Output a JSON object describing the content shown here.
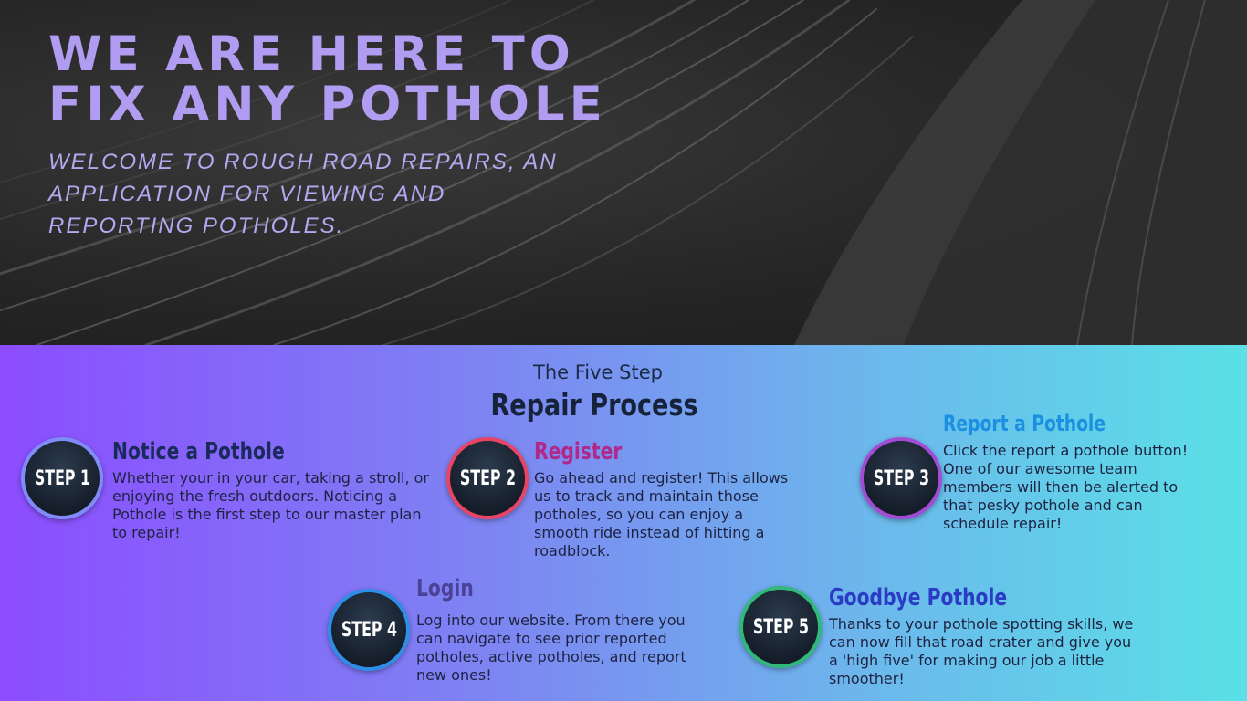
{
  "hero": {
    "title_line1": "WE ARE HERE TO",
    "title_line2": "FIX ANY POTHOLE",
    "subtitle": "WELCOME TO ROUGH ROAD REPAIRS, AN APPLICATION FOR VIEWING AND REPORTING POTHOLES."
  },
  "process": {
    "kicker": "The Five Step",
    "title": "Repair Process",
    "steps": [
      {
        "badge": "STEP 1",
        "title": "Notice a Pothole",
        "text": "Whether your in your car, taking a stroll, or enjoying the fresh outdoors. Noticing a Pothole is the first step to our master plan to repair!",
        "title_color": "#1a2a5a",
        "ring_color": "#7f8cf8"
      },
      {
        "badge": "STEP 2",
        "title": "Register",
        "text": "Go ahead and register! This allows us to track and maintain those potholes, so you can enjoy a smooth ride instead of hitting a roadblock.",
        "title_color": "#b0288a",
        "ring_color": "#e84466"
      },
      {
        "badge": "STEP 3",
        "title": "Report a Pothole",
        "text": "Click the report a pothole button! One of our awesome team members will then be alerted to that pesky pothole and can schedule repair!",
        "title_color": "#1b8fe0",
        "ring_color": "#a24cd6"
      },
      {
        "badge": "STEP 4",
        "title": "Login",
        "text": "Log into our website. From there you can navigate to see prior reported potholes, active potholes, and report new ones!",
        "title_color": "#4a4296",
        "ring_color": "#2e8ee6"
      },
      {
        "badge": "STEP 5",
        "title": "Goodbye Pothole",
        "text": "Thanks to your pothole spotting skills, we can now fill that road crater and give you a 'high five' for making our job a little smoother!",
        "title_color": "#2a3cc4",
        "ring_color": "#2fb879"
      }
    ]
  }
}
